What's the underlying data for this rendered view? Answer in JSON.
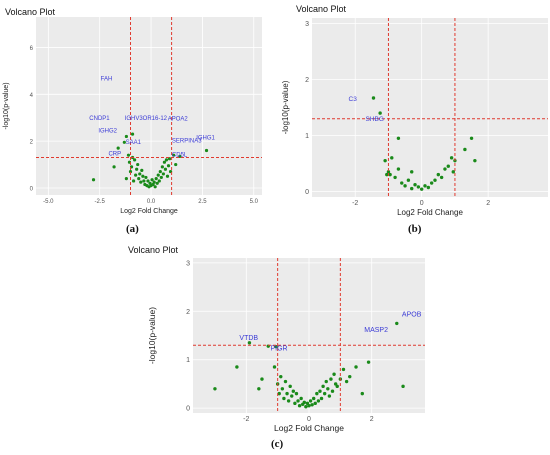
{
  "colors": {
    "point": "#1a8a1a",
    "label": "#3b3bd6",
    "threshold": "#e03a2f",
    "panel_bg": "#ebebeb",
    "grid": "#ffffff",
    "axis_text": "#555555"
  },
  "chart_data": [
    {
      "id": "a",
      "caption": "(a)",
      "type": "scatter",
      "title": "Volcano Plot",
      "xlabel": "Log2 Fold Change",
      "ylabel": "-log10(p-value)",
      "xlim": [
        -5.6,
        5.4
      ],
      "ylim": [
        -0.3,
        7.3
      ],
      "xticks": [
        -5.0,
        -2.5,
        0.0,
        2.5,
        5.0
      ],
      "xtick_labels": [
        "-5.0",
        "-2.5",
        "0.0",
        "2.5",
        "5.0"
      ],
      "yticks": [
        0,
        2,
        4,
        6
      ],
      "ytick_labels": [
        "0",
        "2",
        "4",
        "6"
      ],
      "thresholds": {
        "x": [
          -1,
          1
        ],
        "y": 1.3
      },
      "labeled_points": [
        {
          "name": "FAH",
          "x": -2.6,
          "y": 4.5
        },
        {
          "name": "CNDP1",
          "x": -1.4,
          "y": 2.85
        },
        {
          "name": "IGHV3OR16-12",
          "x": -0.7,
          "y": 2.85
        },
        {
          "name": "IGHG2",
          "x": -1.3,
          "y": 2.45
        },
        {
          "name": "APOA2",
          "x": 1.3,
          "y": 2.7
        },
        {
          "name": "SERPINA3",
          "x": 1.6,
          "y": 2.15
        },
        {
          "name": "IGHG1",
          "x": 2.1,
          "y": 2.15
        },
        {
          "name": "SAA1",
          "x": -0.9,
          "y": 2.0
        },
        {
          "name": "CD5L",
          "x": 1.6,
          "y": 1.65
        },
        {
          "name": "CRP",
          "x": -1.1,
          "y": 1.55
        }
      ],
      "points": [
        [
          -2.8,
          0.35
        ],
        [
          -1.6,
          1.7
        ],
        [
          -1.3,
          1.95
        ],
        [
          -1.2,
          0.4
        ],
        [
          -1.1,
          1.4
        ],
        [
          -1.05,
          1.1
        ],
        [
          -1.0,
          0.7
        ],
        [
          -0.95,
          0.9
        ],
        [
          -0.9,
          1.3
        ],
        [
          -0.85,
          0.3
        ],
        [
          -0.8,
          1.2
        ],
        [
          -0.75,
          0.55
        ],
        [
          -0.7,
          0.8
        ],
        [
          -0.65,
          1.0
        ],
        [
          -0.6,
          0.4
        ],
        [
          -0.55,
          0.6
        ],
        [
          -0.5,
          0.25
        ],
        [
          -0.45,
          0.75
        ],
        [
          -0.4,
          0.5
        ],
        [
          -0.35,
          0.3
        ],
        [
          -0.3,
          0.15
        ],
        [
          -0.25,
          0.45
        ],
        [
          -0.2,
          0.1
        ],
        [
          -0.15,
          0.3
        ],
        [
          -0.1,
          0.05
        ],
        [
          -0.05,
          0.2
        ],
        [
          0.0,
          0.1
        ],
        [
          0.05,
          0.35
        ],
        [
          0.1,
          0.15
        ],
        [
          0.15,
          0.25
        ],
        [
          0.2,
          0.05
        ],
        [
          0.25,
          0.4
        ],
        [
          0.3,
          0.2
        ],
        [
          0.35,
          0.55
        ],
        [
          0.4,
          0.3
        ],
        [
          0.45,
          0.7
        ],
        [
          0.5,
          0.45
        ],
        [
          0.55,
          0.9
        ],
        [
          0.6,
          0.6
        ],
        [
          0.65,
          1.1
        ],
        [
          0.7,
          0.8
        ],
        [
          0.75,
          1.2
        ],
        [
          0.8,
          0.5
        ],
        [
          0.85,
          0.95
        ],
        [
          0.9,
          1.25
        ],
        [
          0.95,
          0.7
        ],
        [
          1.1,
          1.4
        ],
        [
          1.2,
          1.0
        ],
        [
          1.4,
          1.35
        ],
        [
          -1.8,
          0.9
        ],
        [
          -0.9,
          2.3
        ],
        [
          -1.2,
          2.2
        ],
        [
          2.7,
          1.6
        ]
      ]
    },
    {
      "id": "b",
      "caption": "(b)",
      "type": "scatter",
      "title": "Volcano Plot",
      "xlabel": "Log2 Fold Change",
      "ylabel": "-log10(p-value)",
      "xlim": [
        -3.3,
        3.8
      ],
      "ylim": [
        -0.1,
        3.1
      ],
      "xticks": [
        -2,
        0,
        2
      ],
      "xtick_labels": [
        "-2",
        "0",
        "2"
      ],
      "yticks": [
        0,
        1,
        2,
        3
      ],
      "ytick_labels": [
        "0",
        "1",
        "2",
        "3"
      ],
      "thresholds": {
        "x": [
          -1,
          1
        ],
        "y": 1.3
      },
      "labeled_points": [
        {
          "name": "C3",
          "x": -1.6,
          "y": 1.65
        },
        {
          "name": "SHBG",
          "x": -1.3,
          "y": 1.35
        }
      ],
      "points": [
        [
          -1.45,
          1.67
        ],
        [
          -1.25,
          1.4
        ],
        [
          -1.1,
          0.55
        ],
        [
          -1.0,
          0.35
        ],
        [
          -0.95,
          0.3
        ],
        [
          -0.9,
          0.6
        ],
        [
          -0.8,
          0.25
        ],
        [
          -0.7,
          0.4
        ],
        [
          -0.6,
          0.15
        ],
        [
          -0.5,
          0.1
        ],
        [
          -0.4,
          0.2
        ],
        [
          -0.3,
          0.05
        ],
        [
          -0.2,
          0.12
        ],
        [
          -0.1,
          0.08
        ],
        [
          0.0,
          0.04
        ],
        [
          0.1,
          0.1
        ],
        [
          0.2,
          0.07
        ],
        [
          0.3,
          0.15
        ],
        [
          0.4,
          0.2
        ],
        [
          0.5,
          0.3
        ],
        [
          0.6,
          0.25
        ],
        [
          0.7,
          0.4
        ],
        [
          0.8,
          0.45
        ],
        [
          0.9,
          0.6
        ],
        [
          1.0,
          0.55
        ],
        [
          0.95,
          0.35
        ],
        [
          -0.7,
          0.95
        ],
        [
          -1.05,
          0.3
        ],
        [
          1.3,
          0.75
        ],
        [
          1.5,
          0.95
        ],
        [
          1.6,
          0.55
        ],
        [
          -0.3,
          0.35
        ]
      ]
    },
    {
      "id": "c",
      "caption": "(c)",
      "type": "scatter",
      "title": "Volcano Plot",
      "xlabel": "Log2 Fold Change",
      "ylabel": "-log10(p-value)",
      "xlim": [
        -3.7,
        3.7
      ],
      "ylim": [
        -0.1,
        3.1
      ],
      "xticks": [
        -2,
        0,
        2
      ],
      "xtick_labels": [
        "-2",
        "0",
        "2"
      ],
      "yticks": [
        0,
        1,
        2,
        3
      ],
      "ytick_labels": [
        "0",
        "1",
        "2",
        "3"
      ],
      "thresholds": {
        "x": [
          -1,
          1
        ],
        "y": 1.3
      },
      "labeled_points": [
        {
          "name": "APOB",
          "x": 2.9,
          "y": 1.85
        },
        {
          "name": "MASP2",
          "x": 2.4,
          "y": 1.7
        },
        {
          "name": "VTDB",
          "x": -1.9,
          "y": 1.35
        },
        {
          "name": "PIGR",
          "x": -1.1,
          "y": 1.27
        }
      ],
      "points": [
        [
          -3.0,
          0.4
        ],
        [
          -1.9,
          1.35
        ],
        [
          -1.05,
          1.27
        ],
        [
          -1.3,
          1.28
        ],
        [
          -1.1,
          0.85
        ],
        [
          -1.0,
          0.5
        ],
        [
          -0.95,
          0.3
        ],
        [
          -0.9,
          0.65
        ],
        [
          -0.85,
          0.4
        ],
        [
          -0.8,
          0.2
        ],
        [
          -0.75,
          0.55
        ],
        [
          -0.7,
          0.3
        ],
        [
          -0.65,
          0.15
        ],
        [
          -0.6,
          0.45
        ],
        [
          -0.55,
          0.25
        ],
        [
          -0.5,
          0.35
        ],
        [
          -0.45,
          0.1
        ],
        [
          -0.4,
          0.3
        ],
        [
          -0.35,
          0.15
        ],
        [
          -0.3,
          0.05
        ],
        [
          -0.25,
          0.2
        ],
        [
          -0.2,
          0.08
        ],
        [
          -0.15,
          0.12
        ],
        [
          -0.1,
          0.03
        ],
        [
          -0.05,
          0.1
        ],
        [
          0.0,
          0.05
        ],
        [
          0.05,
          0.15
        ],
        [
          0.1,
          0.07
        ],
        [
          0.15,
          0.2
        ],
        [
          0.2,
          0.1
        ],
        [
          0.25,
          0.3
        ],
        [
          0.3,
          0.15
        ],
        [
          0.35,
          0.35
        ],
        [
          0.4,
          0.2
        ],
        [
          0.45,
          0.45
        ],
        [
          0.5,
          0.3
        ],
        [
          0.55,
          0.55
        ],
        [
          0.6,
          0.4
        ],
        [
          0.65,
          0.25
        ],
        [
          0.7,
          0.6
        ],
        [
          0.75,
          0.35
        ],
        [
          0.8,
          0.7
        ],
        [
          0.85,
          0.5
        ],
        [
          0.9,
          0.45
        ],
        [
          1.0,
          0.6
        ],
        [
          1.1,
          0.8
        ],
        [
          1.2,
          0.55
        ],
        [
          1.3,
          0.65
        ],
        [
          1.5,
          0.85
        ],
        [
          1.9,
          0.95
        ],
        [
          -1.5,
          0.6
        ],
        [
          -2.3,
          0.85
        ],
        [
          2.8,
          1.75
        ],
        [
          3.0,
          0.45
        ],
        [
          -1.6,
          0.4
        ],
        [
          1.7,
          0.3
        ]
      ]
    }
  ]
}
